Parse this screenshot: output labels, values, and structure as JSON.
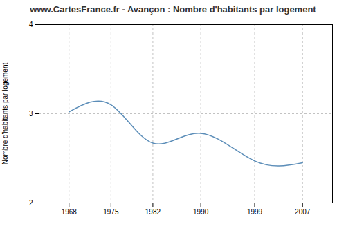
{
  "chart_data": {
    "type": "line",
    "title": "www.CartesFrance.fr - Avançon : Nombre d'habitants par logement",
    "y_label": "Nombre d'habitants par logement",
    "x": [
      1968,
      1975,
      1982,
      1990,
      1999,
      2007
    ],
    "values": [
      3.02,
      3.1,
      2.67,
      2.78,
      2.47,
      2.45
    ],
    "color": "#5b8db8",
    "xlim": [
      1963,
      2012
    ],
    "xticks": [
      1968,
      1975,
      1982,
      1990,
      1999,
      2007
    ],
    "ylim": [
      2,
      4
    ],
    "yticks": [
      2,
      3,
      4
    ],
    "grid": true
  }
}
